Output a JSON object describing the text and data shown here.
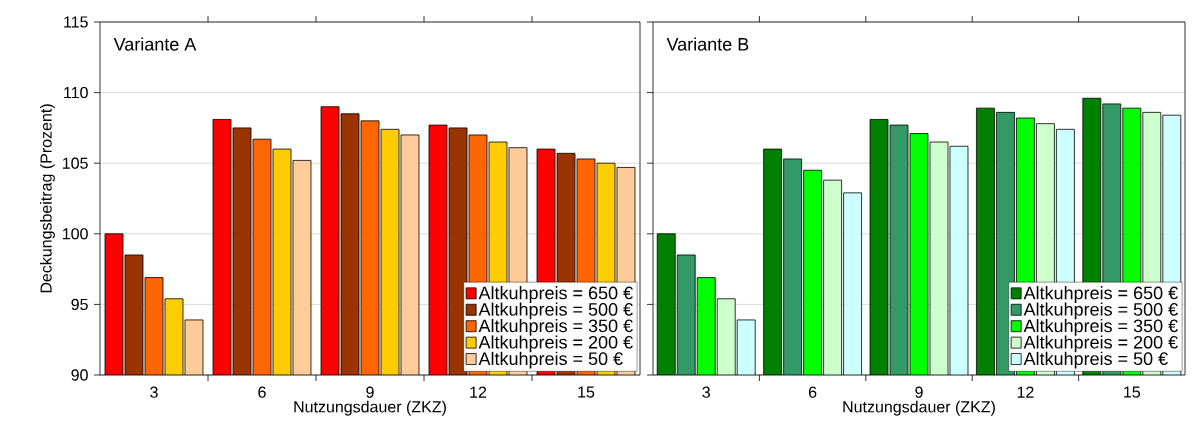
{
  "chart_data": [
    {
      "type": "bar",
      "title": "Variante A",
      "xlabel": "Nutzungsdauer (ZKZ)",
      "ylabel": "Deckungsbeitrag (Prozent)",
      "categories": [
        "3",
        "6",
        "9",
        "12",
        "15"
      ],
      "ylim": [
        90,
        115
      ],
      "yticks": [
        90,
        95,
        100,
        105,
        110,
        115
      ],
      "grid": "y",
      "legend": "bottom right",
      "series": [
        {
          "name": "Altkuhpreis = 650 €",
          "color": "#ff0000",
          "values": [
            100.0,
            108.1,
            109.0,
            107.7,
            106.0
          ]
        },
        {
          "name": "Altkuhpreis = 500 €",
          "color": "#993300",
          "values": [
            98.5,
            107.5,
            108.5,
            107.5,
            105.7
          ]
        },
        {
          "name": "Altkuhpreis = 350 €",
          "color": "#ff6600",
          "values": [
            96.9,
            106.7,
            108.0,
            107.0,
            105.3
          ]
        },
        {
          "name": "Altkuhpreis = 200 €",
          "color": "#ffcc00",
          "values": [
            95.4,
            106.0,
            107.4,
            106.5,
            105.0
          ]
        },
        {
          "name": "Altkuhpreis = 50 €",
          "color": "#ffcc99",
          "values": [
            93.9,
            105.2,
            107.0,
            106.1,
            104.7
          ]
        }
      ]
    },
    {
      "type": "bar",
      "title": "Variante B",
      "xlabel": "Nutzungsdauer (ZKZ)",
      "categories": [
        "3",
        "6",
        "9",
        "12",
        "15"
      ],
      "ylim": [
        90,
        115
      ],
      "yticks": [
        90,
        95,
        100,
        105,
        110,
        115
      ],
      "tick_labels": "x",
      "grid": "y",
      "legend": "bottom right",
      "series": [
        {
          "name": "Altkuhpreis = 650 €",
          "color": "#008000",
          "values": [
            100.0,
            106.0,
            108.1,
            108.9,
            109.6
          ]
        },
        {
          "name": "Altkuhpreis = 500 €",
          "color": "#339966",
          "values": [
            98.5,
            105.3,
            107.7,
            108.6,
            109.2
          ]
        },
        {
          "name": "Altkuhpreis = 350 €",
          "color": "#00ff00",
          "values": [
            96.9,
            104.5,
            107.1,
            108.2,
            108.9
          ]
        },
        {
          "name": "Altkuhpreis = 200 €",
          "color": "#ccffcc",
          "values": [
            95.4,
            103.8,
            106.5,
            107.8,
            108.6
          ]
        },
        {
          "name": "Altkuhpreis = 50 €",
          "color": "#ccffff",
          "values": [
            93.9,
            102.9,
            106.2,
            107.4,
            108.4
          ]
        }
      ]
    }
  ]
}
